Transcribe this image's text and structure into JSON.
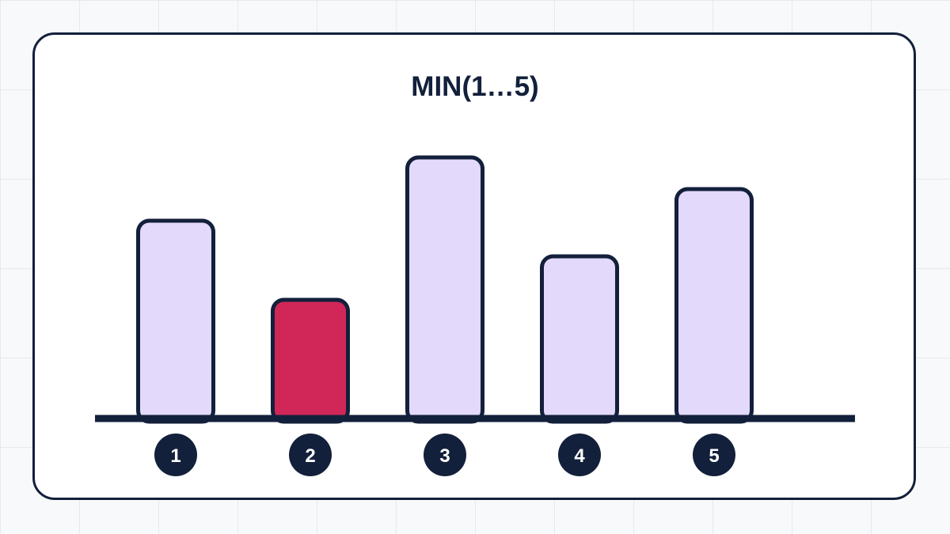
{
  "chart_data": {
    "type": "bar",
    "title": "MIN(1…5)",
    "categories": [
      "1",
      "2",
      "3",
      "4",
      "5"
    ],
    "values": [
      5,
      3,
      6.6,
      4.1,
      5.8
    ],
    "highlight_index": 1,
    "ylim": [
      0,
      7
    ],
    "grid": false,
    "colors": {
      "bar_fill": "#e3d9fa",
      "highlight_fill": "#d02758",
      "outline": "#13203b",
      "label_text": "#ffffff"
    }
  }
}
